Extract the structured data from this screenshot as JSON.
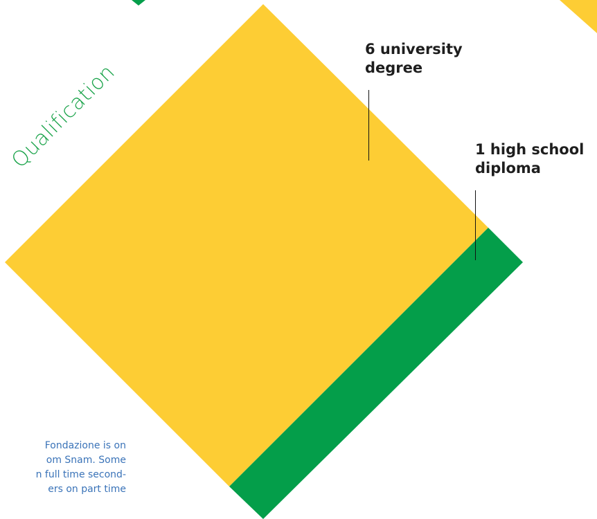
{
  "qualification_title": "Qualification",
  "labels": {
    "university": {
      "line1": "6 university",
      "line2": "degree"
    },
    "high_school": {
      "line1": "1 high school",
      "line2": "diploma"
    }
  },
  "body_text": {
    "line1": "Fondazione is on",
    "line2": "om Snam.  Some",
    "line3": "n full time second-",
    "line4": "ers  on  part  time"
  },
  "colors": {
    "yellow": "#FDCD34",
    "green": "#049E4A",
    "text": "#1e1e1e",
    "accent_text": "#3a73b8"
  }
}
